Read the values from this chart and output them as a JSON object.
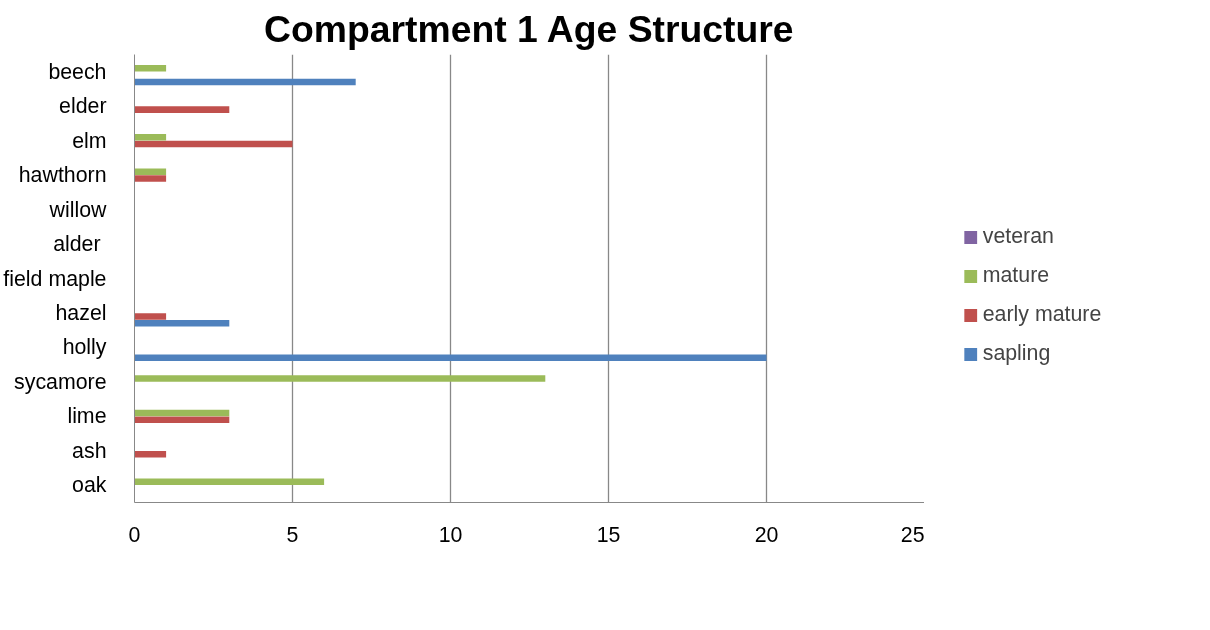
{
  "chart_data": {
    "type": "bar",
    "orientation": "horizontal",
    "title": "Compartment 1 Age Structure",
    "categories": [
      "beech",
      "elder",
      "elm",
      "hawthorn",
      "willow",
      "alder ",
      "field maple",
      "hazel",
      "holly",
      "sycamore",
      "lime",
      "ash",
      "oak"
    ],
    "series": [
      {
        "name": "sapling",
        "color": "#4f81bd",
        "values": [
          7,
          null,
          null,
          null,
          null,
          null,
          null,
          3,
          20,
          null,
          null,
          null,
          null
        ]
      },
      {
        "name": "early mature",
        "color": "#c0504d",
        "values": [
          null,
          3,
          5,
          1,
          null,
          null,
          null,
          1,
          null,
          null,
          3,
          1,
          null
        ]
      },
      {
        "name": "mature",
        "color": "#9bbb59",
        "values": [
          1,
          null,
          1,
          1,
          null,
          null,
          null,
          null,
          null,
          13,
          3,
          null,
          6
        ]
      },
      {
        "name": "veteran",
        "color": "#8064a2",
        "values": [
          null,
          null,
          null,
          null,
          null,
          null,
          null,
          null,
          null,
          null,
          null,
          null,
          null
        ]
      }
    ],
    "xlim": [
      0,
      25
    ],
    "xticks": [
      0,
      5,
      10,
      15,
      20,
      25
    ],
    "grid": "x",
    "legend": "right"
  }
}
